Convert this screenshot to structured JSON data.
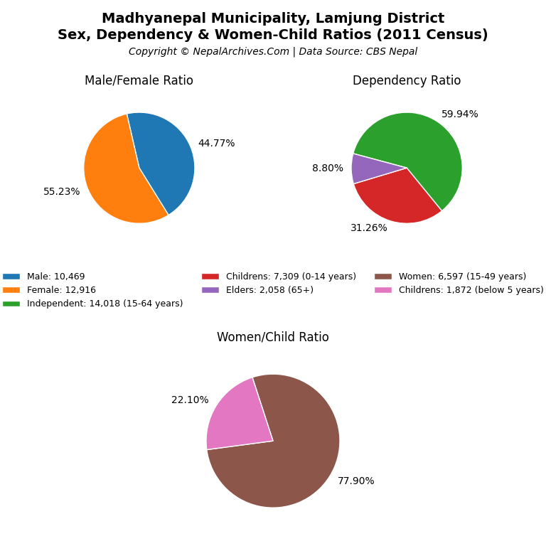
{
  "title": "Madhyanepal Municipality, Lamjung District",
  "subtitle": "Sex, Dependency & Women-Child Ratios (2011 Census)",
  "annotations": [
    "Copyright © NepalArchives.Com | Data Source: CBS Nepal"
  ],
  "legend": "center",
  "chart_data": [
    {
      "type": "pie",
      "title": "Male/Female Ratio",
      "categories": [
        "Male: 10,469",
        "Female: 12,916"
      ],
      "values": [
        44.77,
        55.23
      ],
      "value_labels": [
        "44.77%",
        "55.23%"
      ],
      "data_labels": true
    },
    {
      "type": "pie",
      "title": "Dependency Ratio",
      "categories": [
        "Independent: 14,018 (15-64 years)",
        "Childrens: 7,309 (0-14 years)",
        "Elders: 2,058 (65+)"
      ],
      "values": [
        59.94,
        31.26,
        8.8
      ],
      "value_labels": [
        "59.94%",
        "31.26%",
        "8.80%"
      ],
      "data_labels": true
    },
    {
      "type": "pie",
      "title": "Women/Child Ratio",
      "categories": [
        "Women: 6,597 (15-49 years)",
        "Childrens: 1,872 (below 5 years)"
      ],
      "values": [
        77.9,
        22.1
      ],
      "value_labels": [
        "77.90%",
        "22.10%"
      ],
      "data_labels": true
    }
  ]
}
